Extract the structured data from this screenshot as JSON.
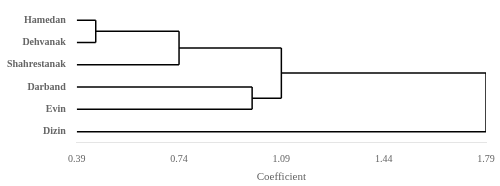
{
  "chart_data": {
    "type": "dendrogram",
    "categories": [
      "Hamedan",
      "Dehvanak",
      "Shahrestanak",
      "Darband",
      "Evin",
      "Dizin"
    ],
    "tree": {
      "value": 1.79,
      "children": [
        {
          "value": 1.09,
          "children": [
            {
              "value": 0.74,
              "children": [
                {
                  "value": 0.455,
                  "children": [
                    "Hamedan",
                    "Dehvanak"
                  ]
                },
                "Shahrestanak"
              ]
            },
            {
              "value": 0.99,
              "children": [
                "Darband",
                "Evin"
              ]
            }
          ]
        },
        "Dizin"
      ]
    },
    "xlim": [
      0.39,
      1.79
    ],
    "xticks": [
      0.39,
      0.74,
      1.09,
      1.44,
      1.79
    ],
    "xlabel": "Coefficient",
    "color": "#000000",
    "grid": false
  }
}
